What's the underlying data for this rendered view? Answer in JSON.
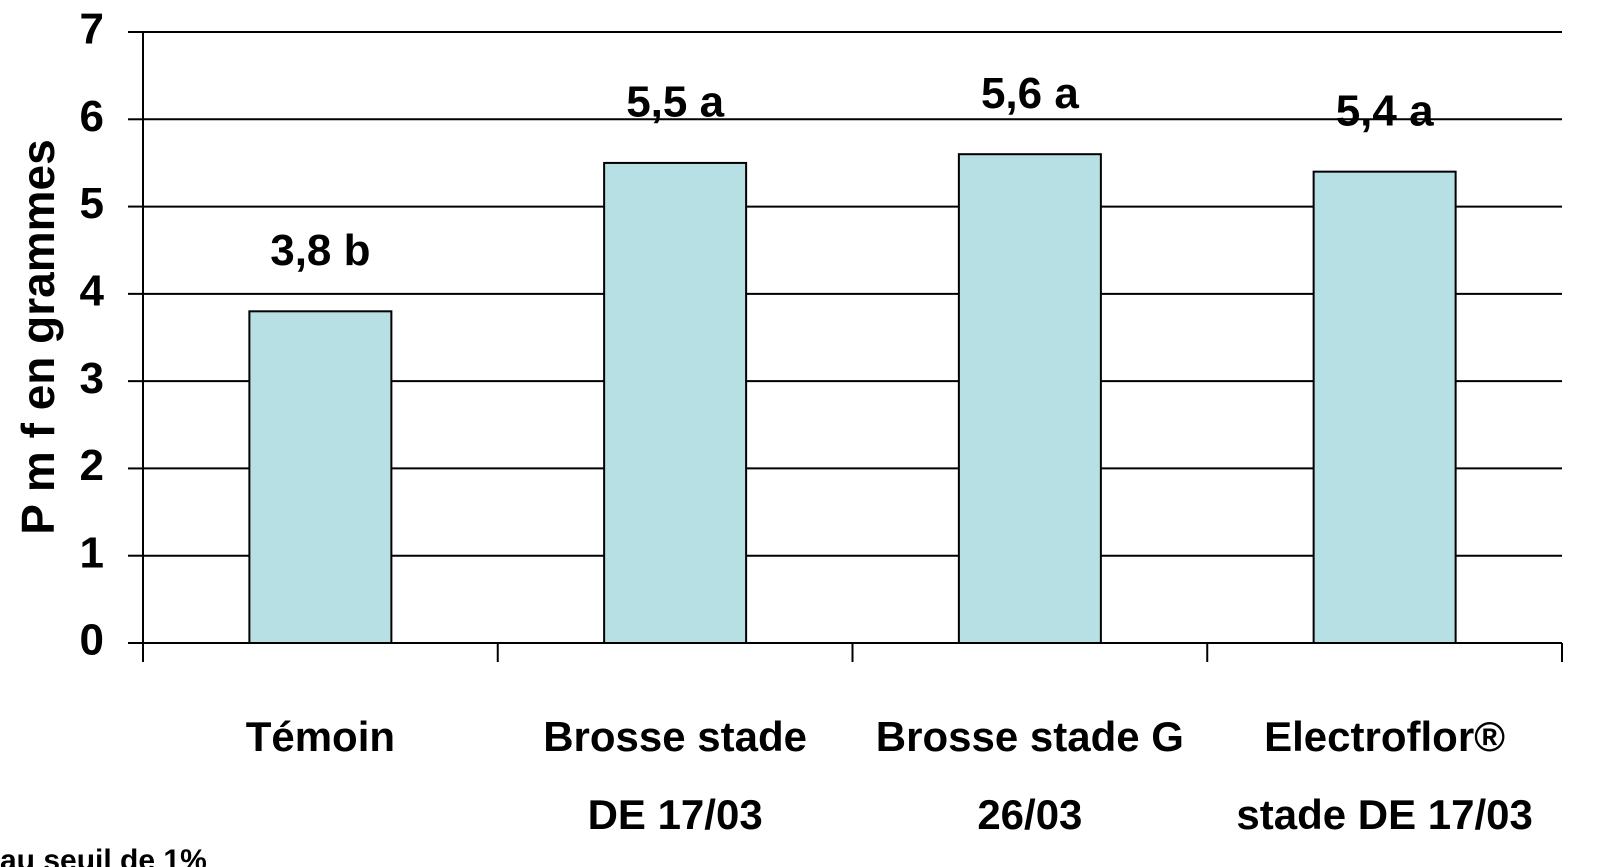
{
  "chart_data": {
    "type": "bar",
    "y_label": "P m f en grammes",
    "categories": [
      [
        "Témoin"
      ],
      [
        "Brosse stade",
        "DE 17/03"
      ],
      [
        "Brosse stade G",
        "26/03"
      ],
      [
        "Electroflor®",
        "stade DE 17/03"
      ]
    ],
    "values": [
      3.8,
      5.5,
      5.6,
      5.4
    ],
    "value_labels": [
      "3,8 b",
      "5,5 a",
      "5,6 a",
      "5,4 a"
    ],
    "color": "#b7e0e4",
    "ylim": [
      0,
      7
    ],
    "yticks": [
      0,
      1,
      2,
      3,
      4,
      5,
      6,
      7
    ],
    "grid": true,
    "annotation": "au seuil de 1%"
  }
}
